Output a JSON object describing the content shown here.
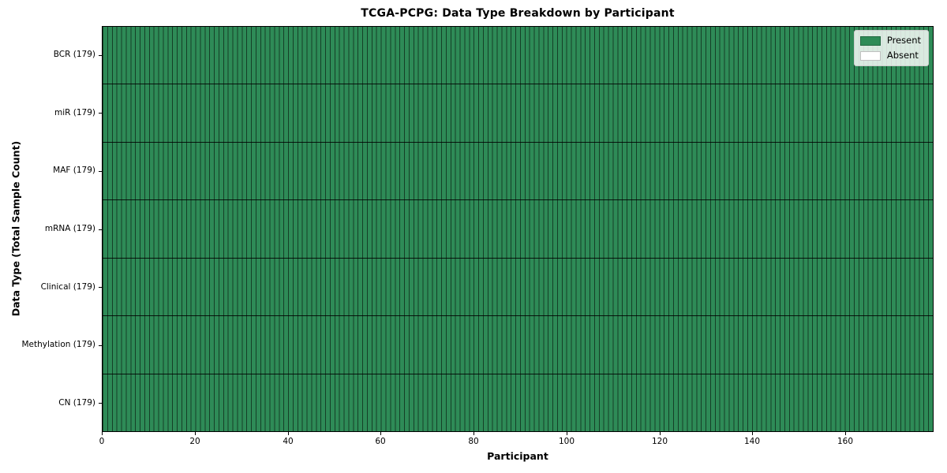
{
  "chart_data": {
    "type": "heatmap",
    "title": "TCGA-PCPG: Data Type Breakdown by Participant",
    "xlabel": "Participant",
    "ylabel": "Data Type (Total Sample Count)",
    "x_axis": {
      "min": 0,
      "max": 179,
      "ticks": [
        0,
        20,
        40,
        60,
        80,
        100,
        120,
        140,
        160
      ]
    },
    "n_participants": 179,
    "rows": [
      {
        "name": "BCR (179)",
        "present_count": 179,
        "absent_count": 0
      },
      {
        "name": "miR (179)",
        "present_count": 179,
        "absent_count": 0
      },
      {
        "name": "MAF (179)",
        "present_count": 179,
        "absent_count": 0
      },
      {
        "name": "mRNA (179)",
        "present_count": 179,
        "absent_count": 0
      },
      {
        "name": "Clinical (179)",
        "present_count": 179,
        "absent_count": 0
      },
      {
        "name": "Methylation (179)",
        "present_count": 179,
        "absent_count": 0
      },
      {
        "name": "CN (179)",
        "present_count": 179,
        "absent_count": 0
      }
    ],
    "cell_values_note": "every participant column is Present (green) for all 7 data types",
    "legend": {
      "position": "upper-right",
      "entries": [
        {
          "label": "Present",
          "color": "#2e8b57"
        },
        {
          "label": "Absent",
          "color": "#ffffff"
        }
      ]
    },
    "colors": {
      "present": "#2e8b57",
      "absent": "#ffffff",
      "cell_edge": "rgba(0,0,0,0.55)",
      "row_divider": "#000000",
      "plot_border": "#000000",
      "background": "#ffffff"
    }
  }
}
